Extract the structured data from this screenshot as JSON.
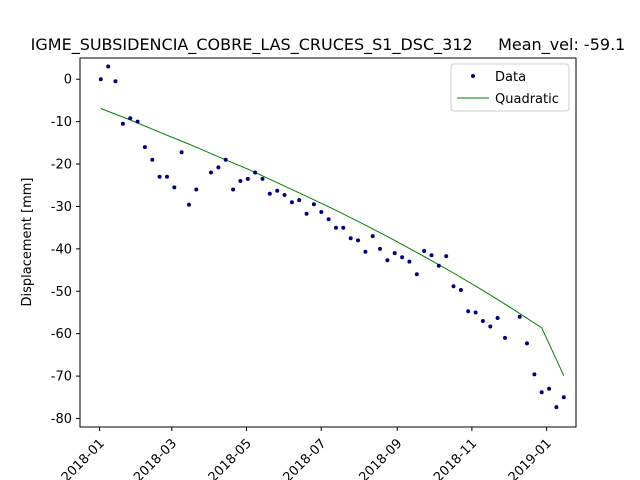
{
  "chart_data": {
    "type": "scatter",
    "title": "IGME_SUBSIDENCIA_COBRE_LAS_CRUCES_S1_DSC_312     Mean_vel: -59.1",
    "xlabel": "",
    "ylabel": "Displacement [mm]",
    "x_type": "date",
    "xlim": [
      "2017-12-16",
      "2019-01-25"
    ],
    "ylim": [
      -82,
      5
    ],
    "grid": false,
    "legend_position": "top-right",
    "xticks": [
      "2018-01",
      "2018-03",
      "2018-05",
      "2018-07",
      "2018-09",
      "2018-11",
      "2019-01"
    ],
    "yticks": [
      0,
      -10,
      -20,
      -30,
      -40,
      -50,
      -60,
      -70,
      -80
    ],
    "colors": {
      "data": "#000080",
      "fit": "#008000"
    },
    "series": [
      {
        "name": "Data",
        "kind": "markers",
        "x": [
          "2018-01-02",
          "2018-01-08",
          "2018-01-14",
          "2018-01-20",
          "2018-01-26",
          "2018-02-01",
          "2018-02-07",
          "2018-02-13",
          "2018-02-19",
          "2018-02-25",
          "2018-03-03",
          "2018-03-09",
          "2018-03-15",
          "2018-03-21",
          "2018-04-02",
          "2018-04-08",
          "2018-04-14",
          "2018-04-20",
          "2018-04-26",
          "2018-05-02",
          "2018-05-08",
          "2018-05-14",
          "2018-05-20",
          "2018-05-26",
          "2018-06-01",
          "2018-06-07",
          "2018-06-13",
          "2018-06-19",
          "2018-06-25",
          "2018-07-01",
          "2018-07-07",
          "2018-07-13",
          "2018-07-19",
          "2018-07-25",
          "2018-07-31",
          "2018-08-06",
          "2018-08-12",
          "2018-08-18",
          "2018-08-24",
          "2018-08-30",
          "2018-09-05",
          "2018-09-11",
          "2018-09-17",
          "2018-09-23",
          "2018-09-29",
          "2018-10-05",
          "2018-10-11",
          "2018-10-17",
          "2018-10-23",
          "2018-10-29",
          "2018-11-04",
          "2018-11-10",
          "2018-11-16",
          "2018-11-22",
          "2018-11-28",
          "2018-12-10",
          "2018-12-16",
          "2018-12-22",
          "2018-12-28",
          "2019-01-03",
          "2019-01-09",
          "2019-01-15"
        ],
        "y": [
          0,
          3,
          -0.5,
          -10.5,
          -9.2,
          -10,
          -16,
          -19,
          -23,
          -23,
          -25.5,
          -17.2,
          -29.6,
          -26,
          -22,
          -20.8,
          -19,
          -26,
          -24,
          -23.5,
          -22,
          -23.5,
          -27,
          -26.3,
          -27.3,
          -29,
          -28.5,
          -31.7,
          -29.5,
          -31.3,
          -33,
          -35,
          -35,
          -37.5,
          -38,
          -40.7,
          -37,
          -40,
          -42.7,
          -41,
          -42,
          -43,
          -46,
          -40.5,
          -41.5,
          -44,
          -41.7,
          -48.8,
          -49.7,
          -54.7,
          -55,
          -57,
          -58.3,
          -56.3,
          -61,
          -56,
          -62.3,
          -69.6,
          -73.8,
          -73,
          -77.3,
          -75
        ]
      },
      {
        "name": "Quadratic",
        "kind": "line",
        "x": [
          "2018-01-02",
          "2018-01-26",
          "2018-02-19",
          "2018-03-15",
          "2018-04-08",
          "2018-05-02",
          "2018-05-26",
          "2018-06-19",
          "2018-07-13",
          "2018-08-06",
          "2018-08-30",
          "2018-09-23",
          "2018-10-17",
          "2018-11-10",
          "2018-12-04",
          "2018-12-28",
          "2019-01-15"
        ],
        "y": [
          -6.9,
          -9.6,
          -12.5,
          -15.3,
          -18.3,
          -21.2,
          -24.4,
          -27.6,
          -30.9,
          -34.4,
          -38.0,
          -41.8,
          -45.7,
          -49.8,
          -54.1,
          -58.6,
          -69.9
        ]
      }
    ]
  }
}
